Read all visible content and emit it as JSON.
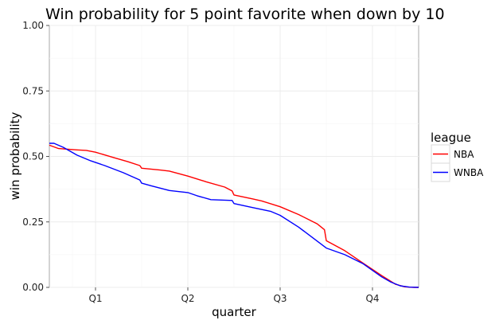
{
  "chart_data": {
    "type": "line",
    "title": "Win probability for 5 point favorite when down by 10",
    "xlabel": "quarter",
    "ylabel": "win probability",
    "xlim": [
      0.5,
      4.5
    ],
    "ylim": [
      0,
      1
    ],
    "x_ticks": [
      {
        "value": 1,
        "label": "Q1"
      },
      {
        "value": 2,
        "label": "Q2"
      },
      {
        "value": 3,
        "label": "Q3"
      },
      {
        "value": 4,
        "label": "Q4"
      }
    ],
    "y_ticks": [
      {
        "value": 0,
        "label": "0.00"
      },
      {
        "value": 0.25,
        "label": "0.25"
      },
      {
        "value": 0.5,
        "label": "0.50"
      },
      {
        "value": 0.75,
        "label": "0.75"
      },
      {
        "value": 1,
        "label": "1.00"
      }
    ],
    "grid": true,
    "legend": {
      "title": "league",
      "position": "right"
    },
    "series": [
      {
        "name": "NBA",
        "color": "#ff0000",
        "x": [
          0.5,
          0.6,
          0.8,
          0.9,
          1.0,
          1.2,
          1.35,
          1.48,
          1.5,
          1.7,
          1.8,
          2.0,
          2.2,
          2.4,
          2.48,
          2.5,
          2.7,
          2.8,
          3.0,
          3.2,
          3.4,
          3.48,
          3.5,
          3.7,
          3.9,
          4.1,
          4.25,
          4.35,
          4.45,
          4.5
        ],
        "values": [
          0.543,
          0.53,
          0.525,
          0.523,
          0.516,
          0.495,
          0.48,
          0.465,
          0.455,
          0.448,
          0.444,
          0.425,
          0.403,
          0.383,
          0.368,
          0.353,
          0.338,
          0.33,
          0.308,
          0.278,
          0.243,
          0.22,
          0.178,
          0.14,
          0.092,
          0.045,
          0.012,
          0.002,
          0.0,
          0.0
        ]
      },
      {
        "name": "WNBA",
        "color": "#0000ff",
        "x": [
          0.5,
          0.55,
          0.65,
          0.8,
          0.95,
          1.1,
          1.3,
          1.48,
          1.5,
          1.6,
          1.8,
          2.0,
          2.1,
          2.25,
          2.48,
          2.5,
          2.7,
          2.9,
          3.0,
          3.2,
          3.5,
          3.7,
          3.9,
          4.1,
          4.2,
          4.3,
          4.4,
          4.5
        ],
        "values": [
          0.55,
          0.55,
          0.535,
          0.505,
          0.483,
          0.465,
          0.438,
          0.41,
          0.398,
          0.388,
          0.37,
          0.362,
          0.35,
          0.335,
          0.332,
          0.32,
          0.305,
          0.29,
          0.275,
          0.23,
          0.15,
          0.125,
          0.09,
          0.04,
          0.02,
          0.006,
          0.001,
          0.0
        ]
      }
    ]
  }
}
